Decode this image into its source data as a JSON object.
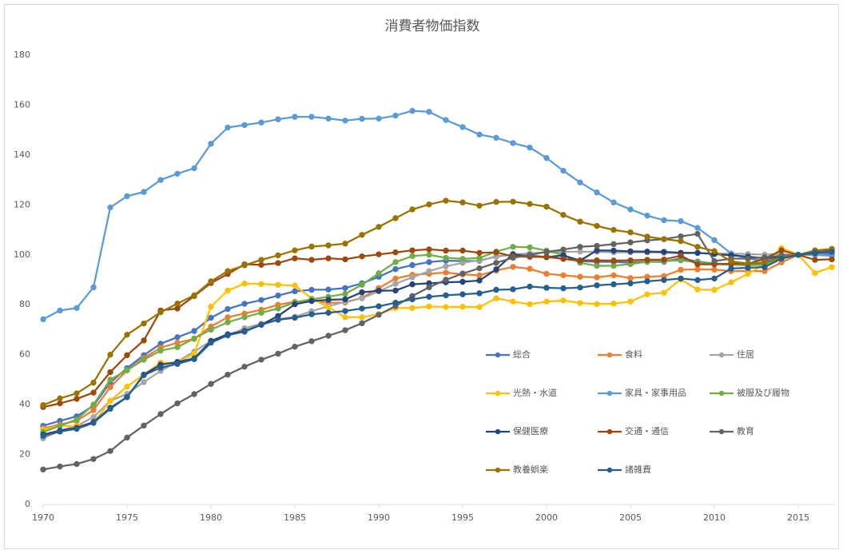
{
  "chart_data": {
    "type": "line",
    "title": "消費者物価指数",
    "x": [
      1970,
      1971,
      1972,
      1973,
      1974,
      1975,
      1976,
      1977,
      1978,
      1979,
      1980,
      1981,
      1982,
      1983,
      1984,
      1985,
      1986,
      1987,
      1988,
      1989,
      1990,
      1991,
      1992,
      1993,
      1994,
      1995,
      1996,
      1997,
      1998,
      1999,
      2000,
      2001,
      2002,
      2003,
      2004,
      2005,
      2006,
      2007,
      2008,
      2009,
      2010,
      2011,
      2012,
      2013,
      2014,
      2015,
      2016,
      2017
    ],
    "xlim": [
      1970,
      2017
    ],
    "xticks": [
      1970,
      1975,
      1980,
      1985,
      1990,
      1995,
      2000,
      2005,
      2010,
      2015
    ],
    "ylim": [
      0,
      180
    ],
    "yticks": [
      0,
      20,
      40,
      60,
      80,
      100,
      120,
      140,
      160,
      180
    ],
    "grid": false,
    "series": [
      {
        "name": "総合",
        "color": "#4472c4",
        "values": [
          31.5,
          33.5,
          35.3,
          39.6,
          48.8,
          54.6,
          59.8,
          64.4,
          67,
          69.5,
          74.8,
          78.3,
          80.4,
          81.9,
          83.7,
          85.4,
          86,
          86.1,
          86.7,
          88.6,
          91.2,
          94.3,
          95.9,
          97.1,
          97.7,
          97.5,
          97.6,
          99.4,
          100.1,
          99.8,
          99.1,
          98.4,
          97.5,
          97.2,
          97.2,
          96.9,
          97.2,
          97.2,
          98.6,
          97.3,
          96.5,
          96.3,
          96.2,
          96.6,
          99.2,
          100,
          99.9,
          100.4
        ]
      },
      {
        "name": "食料",
        "color": "#ed7d31",
        "values": [
          30.5,
          32,
          33.5,
          37.8,
          47,
          53.7,
          58.7,
          62.8,
          64.8,
          66.3,
          71.3,
          75,
          76.5,
          78,
          80,
          81.2,
          81.7,
          80.8,
          80.9,
          82.8,
          86.7,
          90.5,
          92,
          92.4,
          92.9,
          92.2,
          91.8,
          93.7,
          95.2,
          94.4,
          92.4,
          91.8,
          91.2,
          91,
          91.8,
          90.7,
          91.2,
          91.5,
          94,
          94.2,
          94.1,
          93.5,
          93.5,
          93.5,
          97,
          100,
          101.7,
          102.4
        ]
      },
      {
        "name": "住居",
        "color": "#a5a5a5",
        "values": [
          26.5,
          29.5,
          31.5,
          35,
          41.5,
          44.3,
          49,
          53.5,
          57.2,
          61.2,
          65.5,
          67.7,
          70.6,
          72.4,
          74.2,
          75.2,
          77.4,
          79.4,
          81.2,
          82.6,
          85.4,
          88.4,
          91,
          93.5,
          95.4,
          96.8,
          97.8,
          99.2,
          100.2,
          100.6,
          101,
          101.2,
          101.3,
          101.2,
          101,
          101,
          101,
          100.8,
          100.6,
          100.7,
          100.5,
          100.5,
          100.3,
          100.1,
          100.3,
          100,
          99.9,
          99.6
        ]
      },
      {
        "name": "光熱・水道",
        "color": "#ffc000",
        "values": [
          30,
          31.5,
          31.4,
          32.6,
          41.5,
          47.2,
          52,
          56.8,
          56.7,
          60.4,
          79.2,
          85.7,
          88.5,
          88.3,
          88,
          87.7,
          82.5,
          79,
          75,
          75,
          76.3,
          78.7,
          78.7,
          79.3,
          79.1,
          79.2,
          79.1,
          82.6,
          81.3,
          80.2,
          81.3,
          81.7,
          80.7,
          80.3,
          80.5,
          81.3,
          84.2,
          84.8,
          90.2,
          86.1,
          86,
          89,
          92.4,
          96.3,
          102.7,
          100,
          92.7,
          95.1
        ]
      },
      {
        "name": "家具・家事用品",
        "color": "#5b9bd5",
        "values": [
          74.2,
          77.7,
          78.7,
          87,
          119,
          123.5,
          125.2,
          130,
          132.5,
          134.7,
          144.5,
          151,
          152,
          153,
          154.3,
          155.3,
          155.3,
          154.6,
          153.8,
          154.5,
          154.6,
          155.8,
          157.7,
          157.3,
          154,
          151.2,
          148.2,
          146.9,
          144.8,
          143,
          138.8,
          133.7,
          129,
          125,
          121,
          118.2,
          115.7,
          113.9,
          113.5,
          110.8,
          105.9,
          100.5,
          98.4,
          97.7,
          99.3,
          100,
          100.2,
          99.7
        ]
      },
      {
        "name": "被服及び履物",
        "color": "#70ad47",
        "values": [
          29,
          31.5,
          34,
          40,
          50,
          53.8,
          58,
          61.6,
          63,
          66.5,
          70,
          73,
          75,
          76.8,
          78.5,
          81,
          82.2,
          83.2,
          84.4,
          88,
          92.6,
          97.1,
          99.5,
          100,
          98.8,
          98.4,
          98.7,
          101.3,
          103.2,
          103,
          101.7,
          100,
          96.8,
          95.6,
          95.6,
          96.3,
          97.2,
          97.5,
          97.8,
          97,
          96.3,
          96,
          95.8,
          96,
          98.5,
          100,
          101.5,
          101.5
        ]
      },
      {
        "name": "保健医療",
        "color": "#264478",
        "values": [
          28,
          29.6,
          30.7,
          33,
          38.7,
          43,
          52,
          56,
          57,
          58.5,
          65.5,
          68.2,
          69.5,
          72,
          75.5,
          80.2,
          81.5,
          82,
          82.2,
          85,
          85.6,
          85.7,
          88.2,
          88.6,
          89,
          89.2,
          89.7,
          94.2,
          100.3,
          99.3,
          99.1,
          99.8,
          97.7,
          101.8,
          101.7,
          101.4,
          101.3,
          101.2,
          100.8,
          100.8,
          100.3,
          99.8,
          99.3,
          98.6,
          99.3,
          100,
          100.7,
          101.2
        ]
      },
      {
        "name": "交通・通信",
        "color": "#9e480e",
        "values": [
          39,
          40.5,
          42.3,
          44.8,
          53,
          59.8,
          65.7,
          77.7,
          78.5,
          83.5,
          88.7,
          92.3,
          96.2,
          96,
          96.7,
          98.6,
          98,
          98.6,
          98.2,
          99.4,
          100.2,
          101,
          101.8,
          102.2,
          101.7,
          101.7,
          100.8,
          101,
          99.4,
          99.2,
          99.3,
          98.4,
          97.8,
          97.8,
          97.7,
          97.8,
          98,
          98.1,
          99.7,
          96.2,
          96.2,
          96.5,
          96.4,
          98.5,
          101.8,
          100,
          98,
          98.2
        ]
      },
      {
        "name": "教育",
        "color": "#636363",
        "values": [
          14,
          15.2,
          16.2,
          18.2,
          21.4,
          26.8,
          31.6,
          36.2,
          40.5,
          44.2,
          48.3,
          52,
          55.2,
          58,
          60.4,
          63.2,
          65.4,
          67.6,
          69.8,
          72.6,
          76,
          79.5,
          83.5,
          87,
          90,
          92.5,
          94.6,
          96.8,
          98.8,
          100,
          101.2,
          102.1,
          103.2,
          103.6,
          104.3,
          105,
          105.8,
          106.3,
          107.4,
          108.4,
          97.5,
          98.5,
          98.5,
          99,
          99.6,
          100,
          101.3,
          101.8
        ]
      },
      {
        "name": "教養娯楽",
        "color": "#997300",
        "values": [
          39.8,
          42.5,
          44.5,
          48.8,
          60,
          68,
          72.5,
          77,
          80.5,
          83.8,
          89.4,
          93.5,
          95.8,
          98,
          99.8,
          101.8,
          103.3,
          103.8,
          104.5,
          108,
          111.2,
          114.7,
          118.2,
          120.2,
          121.7,
          121,
          119.7,
          121.2,
          121.3,
          120.4,
          119.3,
          116,
          113.3,
          111.6,
          110,
          109,
          107.3,
          106.3,
          105.5,
          103.2,
          101.5,
          97.4,
          96.5,
          97,
          99,
          100,
          101.8,
          102.3
        ]
      },
      {
        "name": "諸雑費",
        "color": "#255e91",
        "values": [
          27.5,
          29.2,
          30.3,
          32.7,
          38.3,
          43,
          51.8,
          54.8,
          56.3,
          58.2,
          64.8,
          67.8,
          69.2,
          72,
          74,
          74.8,
          76.2,
          76.8,
          77.5,
          78.5,
          79.4,
          80.8,
          82.2,
          83.2,
          83.8,
          84.2,
          84.6,
          86,
          86.2,
          87.3,
          86.8,
          86.6,
          86.9,
          87.8,
          88.2,
          88.6,
          89.4,
          89.9,
          90.5,
          89.9,
          90.5,
          94.5,
          94.8,
          95.1,
          98.5,
          100,
          100.9,
          101.2
        ]
      }
    ]
  }
}
